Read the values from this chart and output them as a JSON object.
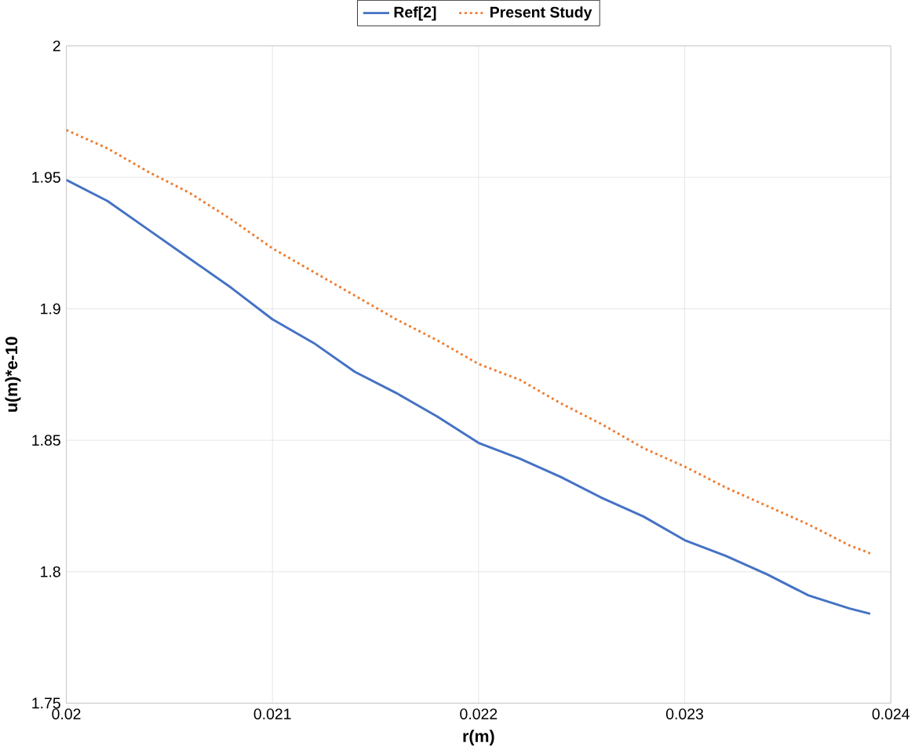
{
  "chart_data": {
    "type": "line",
    "xlabel": "r(m)",
    "ylabel": "u(m)*e-10",
    "x": [
      0.02,
      0.0202,
      0.0204,
      0.0206,
      0.0208,
      0.021,
      0.0212,
      0.0214,
      0.0216,
      0.0218,
      0.022,
      0.0222,
      0.0224,
      0.0226,
      0.0228,
      0.023,
      0.0232,
      0.0234,
      0.0236,
      0.0238,
      0.0239
    ],
    "series": [
      {
        "name": "Ref[2]",
        "color": "#4472c4",
        "line_style": "solid",
        "values": [
          1.949,
          1.941,
          1.93,
          1.919,
          1.908,
          1.896,
          1.887,
          1.876,
          1.868,
          1.859,
          1.849,
          1.843,
          1.836,
          1.828,
          1.821,
          1.812,
          1.806,
          1.799,
          1.791,
          1.786,
          1.784
        ]
      },
      {
        "name": "Present Study",
        "color": "#ed7d31",
        "line_style": "dotted",
        "values": [
          1.968,
          1.961,
          1.952,
          1.944,
          1.934,
          1.923,
          1.914,
          1.905,
          1.896,
          1.888,
          1.879,
          1.873,
          1.864,
          1.856,
          1.847,
          1.84,
          1.832,
          1.825,
          1.818,
          1.81,
          1.807
        ]
      }
    ],
    "xlim": [
      0.02,
      0.024
    ],
    "xticks": [
      0.02,
      0.021,
      0.022,
      0.023,
      0.024
    ],
    "ylim": [
      1.75,
      2
    ],
    "yticks": [
      1.75,
      1.8,
      1.85,
      1.9,
      1.95,
      2
    ],
    "grid": true,
    "legend": "top",
    "marker": "none"
  }
}
